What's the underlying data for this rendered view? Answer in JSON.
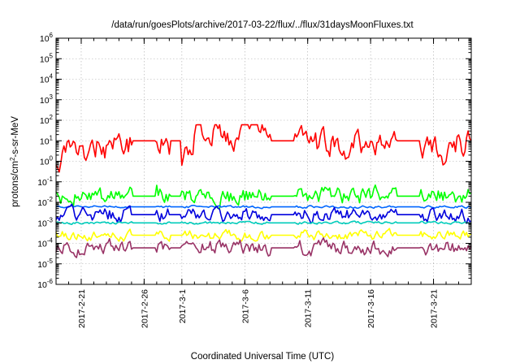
{
  "chart_data": {
    "type": "line",
    "title": "/data/run/goesPlots/archive/2017-03-22/flux/../flux/31daysMoonFluxes.txt",
    "xlabel": "Coordinated Universal Time (UTC)",
    "ylabel": "protons/cm²-s-sr-MeV",
    "yscale": "log",
    "ylim": [
      1e-06,
      1000000.0
    ],
    "xlim": [
      "2017-02-19",
      "2017-03-24"
    ],
    "grid": true,
    "x_tick_labels": [
      "2017-2-21",
      "2017-2-26",
      "2017-3-1",
      "2017-3-6",
      "2017-3-11",
      "2017-3-16",
      "2017-3-21"
    ],
    "y_tick_labels": [
      {
        "base": "10",
        "exp": "-6"
      },
      {
        "base": "10",
        "exp": "-5"
      },
      {
        "base": "10",
        "exp": "-4"
      },
      {
        "base": "10",
        "exp": "-3"
      },
      {
        "base": "10",
        "exp": "-2"
      },
      {
        "base": "10",
        "exp": "-1"
      },
      {
        "base": "10",
        "exp": "0"
      },
      {
        "base": "10",
        "exp": "1"
      },
      {
        "base": "10",
        "exp": "2"
      },
      {
        "base": "10",
        "exp": "3"
      },
      {
        "base": "10",
        "exp": "4"
      },
      {
        "base": "10",
        "exp": "5"
      },
      {
        "base": "10",
        "exp": "6"
      }
    ],
    "gaps": [
      [
        "2017-02-25",
        "2017-02-27"
      ],
      [
        "2017-02-28",
        "2017-03-01"
      ],
      [
        "2017-03-08",
        "2017-03-10"
      ],
      [
        "2017-03-18",
        "2017-03-20"
      ]
    ],
    "series": [
      {
        "color": "#ff0000",
        "baseline": 10,
        "spread": 0.55,
        "floor": 0.3,
        "ceil": 60,
        "x": [
          "2017-02-19",
          "2017-02-20",
          "2017-02-21",
          "2017-02-22",
          "2017-02-23",
          "2017-02-24",
          "2017-02-25",
          "2017-02-26",
          "2017-02-27",
          "2017-02-28",
          "2017-03-01",
          "2017-03-02",
          "2017-03-03",
          "2017-03-04",
          "2017-03-05",
          "2017-03-06",
          "2017-03-07",
          "2017-03-08",
          "2017-03-09",
          "2017-03-10",
          "2017-03-11",
          "2017-03-12",
          "2017-03-13",
          "2017-03-14",
          "2017-03-15",
          "2017-03-16",
          "2017-03-17",
          "2017-03-18",
          "2017-03-19",
          "2017-03-20",
          "2017-03-21",
          "2017-03-22",
          "2017-03-23",
          "2017-03-24"
        ],
        "y": [
          1.5,
          4,
          2,
          8,
          3,
          6,
          8,
          10,
          12,
          6,
          3,
          20,
          25,
          30,
          20,
          25,
          30,
          20,
          15,
          15,
          10,
          5,
          10,
          6,
          8,
          8,
          12,
          10,
          10,
          6,
          8,
          3,
          8,
          5
        ]
      },
      {
        "color": "#00ff00",
        "baseline": 0.02,
        "spread": 0.35,
        "floor": 0.003,
        "ceil": 0.12,
        "x": [
          "2017-02-19",
          "2017-02-24",
          "2017-03-01",
          "2017-03-06",
          "2017-03-11",
          "2017-03-16",
          "2017-03-21",
          "2017-03-24"
        ],
        "y": [
          0.02,
          0.02,
          0.02,
          0.02,
          0.02,
          0.02,
          0.025,
          0.02
        ]
      },
      {
        "color": "#0066ff",
        "baseline": 0.006,
        "spread": 0.05,
        "floor": 0.004,
        "ceil": 0.008,
        "x": [
          "2017-02-19",
          "2017-03-01",
          "2017-03-11",
          "2017-03-21",
          "2017-03-24"
        ],
        "y": [
          0.006,
          0.006,
          0.006,
          0.006,
          0.006
        ]
      },
      {
        "color": "#0000dd",
        "baseline": 0.0025,
        "spread": 0.3,
        "floor": 0.0009,
        "ceil": 0.01,
        "x": [
          "2017-02-19",
          "2017-03-01",
          "2017-03-11",
          "2017-03-21",
          "2017-03-24"
        ],
        "y": [
          0.0025,
          0.0025,
          0.0025,
          0.0025,
          0.0025
        ]
      },
      {
        "color": "#00ccbb",
        "baseline": 0.001,
        "spread": 0.05,
        "floor": 0.0008,
        "ceil": 0.0013,
        "x": [
          "2017-02-19",
          "2017-03-01",
          "2017-03-11",
          "2017-03-21",
          "2017-03-24"
        ],
        "y": [
          0.001,
          0.001,
          0.001,
          0.001,
          0.001
        ]
      },
      {
        "color": "#ffff00",
        "baseline": 0.00025,
        "spread": 0.2,
        "floor": 0.00012,
        "ceil": 0.0006,
        "x": [
          "2017-02-19",
          "2017-03-01",
          "2017-03-11",
          "2017-03-21",
          "2017-03-24"
        ],
        "y": [
          0.00025,
          0.00025,
          0.00025,
          0.00025,
          0.00025
        ]
      },
      {
        "color": "#993366",
        "baseline": 6e-05,
        "spread": 0.3,
        "floor": 2e-05,
        "ceil": 0.0003,
        "x": [
          "2017-02-19",
          "2017-03-01",
          "2017-03-11",
          "2017-03-21",
          "2017-03-24"
        ],
        "y": [
          6e-05,
          6e-05,
          6e-05,
          6e-05,
          6e-05
        ]
      }
    ]
  }
}
